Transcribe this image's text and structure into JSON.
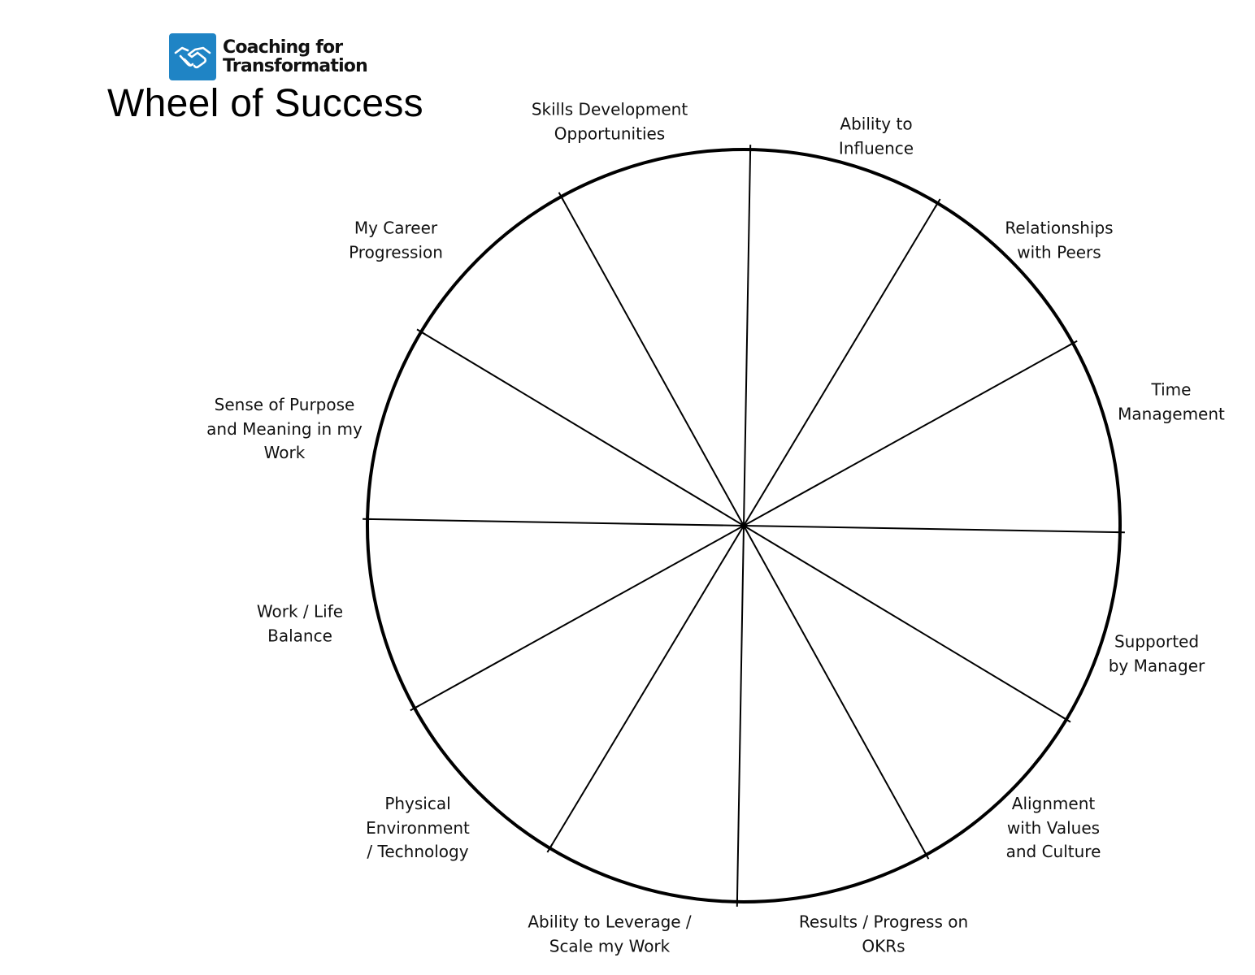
{
  "logo": {
    "line1": "Coaching for",
    "line2": "Transformation",
    "brand_color": "#1f84c5",
    "icon": "handshake-icon"
  },
  "title": "Wheel of Success",
  "wheel": {
    "segment_count": 12,
    "segments": [
      "Skills Development\nOpportunities",
      "Ability to\nInfluence",
      "Relationships\nwith Peers",
      "Time\nManagement",
      "Supported\nby Manager",
      "Alignment\nwith Values\nand Culture",
      "Results / Progress on\nOKRs",
      "Ability to Leverage /\nScale my Work",
      "Physical\nEnvironment\n/ Technology",
      "Work / Life\nBalance",
      "Sense of Purpose\nand Meaning in my\nWork",
      "My Career\nProgression"
    ]
  }
}
